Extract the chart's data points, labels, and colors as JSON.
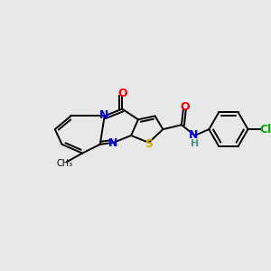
{
  "bg_color": "#e8e8e8",
  "atom_colors": {
    "C": "#000000",
    "N": "#0000ff",
    "O": "#ff0000",
    "S": "#ccaa00",
    "Cl": "#00aa00",
    "H": "#4a9090"
  },
  "bond_color": "#000000",
  "figsize": [
    3.0,
    3.0
  ],
  "dpi": 100
}
